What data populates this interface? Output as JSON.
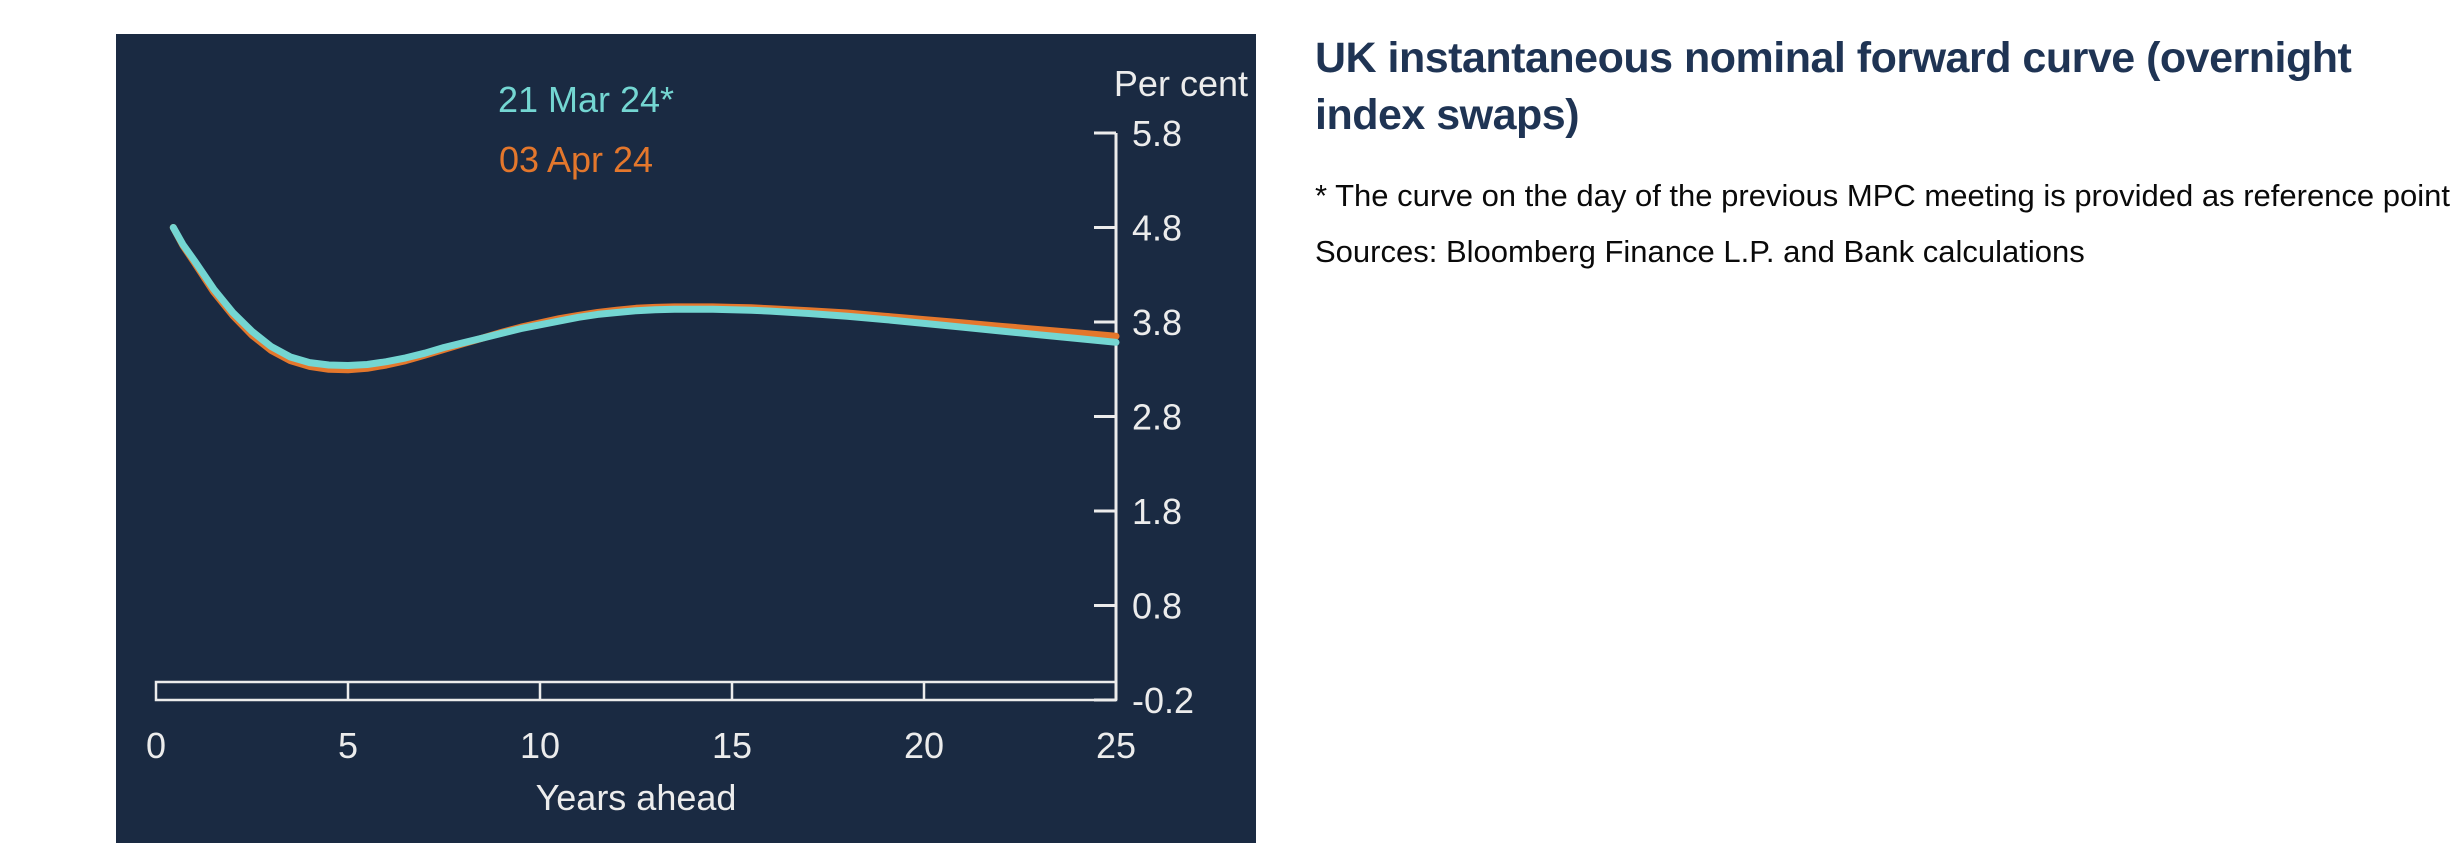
{
  "page": {
    "background": "#ffffff"
  },
  "panel": {
    "background": "#1a2a42"
  },
  "caption": {
    "title": "UK instantaneous nominal forward curve (overnight index swaps)",
    "title_color": "#1f3454",
    "footnote": "* The curve on the day of the previous MPC meeting is provided as reference point",
    "sources": "Sources: Bloomberg Finance L.P. and Bank calculations",
    "text_color": "#0a0a0a"
  },
  "chart_data": {
    "type": "line",
    "ylabel": "Per cent",
    "xlabel": "Years ahead",
    "axis_color": "#ececec",
    "grid": false,
    "legend_position": "top-center-inside",
    "xlim": [
      0,
      25
    ],
    "ylim": [
      -0.2,
      5.8
    ],
    "x_ticks": [
      0,
      5,
      10,
      15,
      20,
      25
    ],
    "y_ticks": [
      5.8,
      4.8,
      3.8,
      2.8,
      1.8,
      0.8,
      -0.2
    ],
    "legend": [
      {
        "label": "21 Mar 24*",
        "color": "#74d6d2"
      },
      {
        "label": "03 Apr 24",
        "color": "#e4772c"
      }
    ],
    "series": [
      {
        "name": "03 Apr 24",
        "color": "#e4772c",
        "points": [
          [
            0.45,
            4.8
          ],
          [
            0.7,
            4.61
          ],
          [
            1,
            4.43
          ],
          [
            1.5,
            4.12
          ],
          [
            2,
            3.87
          ],
          [
            2.5,
            3.66
          ],
          [
            3,
            3.5
          ],
          [
            3.5,
            3.39
          ],
          [
            4,
            3.33
          ],
          [
            4.5,
            3.3
          ],
          [
            5,
            3.295
          ],
          [
            5.5,
            3.31
          ],
          [
            6,
            3.345
          ],
          [
            6.5,
            3.39
          ],
          [
            7,
            3.45
          ],
          [
            7.5,
            3.51
          ],
          [
            8,
            3.57
          ],
          [
            8.5,
            3.63
          ],
          [
            9,
            3.69
          ],
          [
            9.5,
            3.745
          ],
          [
            10,
            3.79
          ],
          [
            10.5,
            3.835
          ],
          [
            11,
            3.87
          ],
          [
            11.5,
            3.9
          ],
          [
            12,
            3.925
          ],
          [
            12.5,
            3.945
          ],
          [
            13,
            3.955
          ],
          [
            13.5,
            3.96
          ],
          [
            14,
            3.96
          ],
          [
            14.5,
            3.96
          ],
          [
            15,
            3.955
          ],
          [
            15.5,
            3.95
          ],
          [
            16,
            3.94
          ],
          [
            17,
            3.92
          ],
          [
            18,
            3.895
          ],
          [
            19,
            3.86
          ],
          [
            20,
            3.825
          ],
          [
            21,
            3.79
          ],
          [
            22,
            3.755
          ],
          [
            23,
            3.72
          ],
          [
            24,
            3.685
          ],
          [
            25,
            3.65
          ]
        ]
      },
      {
        "name": "21 Mar 24*",
        "color": "#74d6d2",
        "points": [
          [
            0.45,
            4.8
          ],
          [
            0.7,
            4.62
          ],
          [
            1,
            4.45
          ],
          [
            1.5,
            4.15
          ],
          [
            2,
            3.9
          ],
          [
            2.5,
            3.7
          ],
          [
            3,
            3.54
          ],
          [
            3.5,
            3.43
          ],
          [
            4,
            3.37
          ],
          [
            4.5,
            3.345
          ],
          [
            5,
            3.34
          ],
          [
            5.5,
            3.35
          ],
          [
            6,
            3.38
          ],
          [
            6.5,
            3.42
          ],
          [
            7,
            3.47
          ],
          [
            7.5,
            3.53
          ],
          [
            8,
            3.58
          ],
          [
            8.5,
            3.63
          ],
          [
            9,
            3.68
          ],
          [
            9.5,
            3.73
          ],
          [
            10,
            3.77
          ],
          [
            10.5,
            3.81
          ],
          [
            11,
            3.85
          ],
          [
            11.5,
            3.88
          ],
          [
            12,
            3.9
          ],
          [
            12.5,
            3.92
          ],
          [
            13,
            3.93
          ],
          [
            13.5,
            3.935
          ],
          [
            14,
            3.935
          ],
          [
            14.5,
            3.935
          ],
          [
            15,
            3.93
          ],
          [
            15.5,
            3.925
          ],
          [
            16,
            3.915
          ],
          [
            17,
            3.89
          ],
          [
            18,
            3.86
          ],
          [
            19,
            3.825
          ],
          [
            20,
            3.785
          ],
          [
            21,
            3.745
          ],
          [
            22,
            3.705
          ],
          [
            23,
            3.665
          ],
          [
            24,
            3.625
          ],
          [
            25,
            3.585
          ]
        ]
      }
    ]
  }
}
